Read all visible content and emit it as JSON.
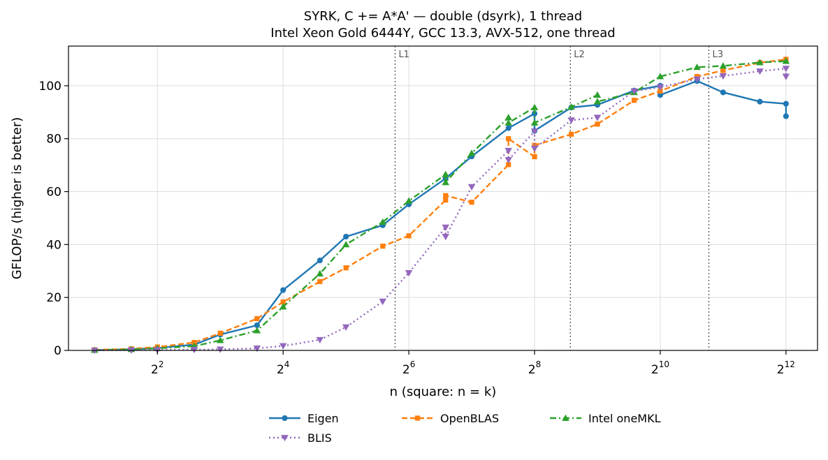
{
  "chart_data": {
    "type": "line",
    "title": "SYRK, C += A*A' — double (dsyrk), 1 thread",
    "subtitle": "Intel Xeon Gold 6444Y, GCC 13.3, AVX-512, one thread",
    "xlabel": "n (square: n = k)",
    "ylabel": "GFLOP/s (higher is better)",
    "xscale": "log2",
    "xlim": [
      1.5,
      5800
    ],
    "ylim": [
      0,
      115
    ],
    "xticks": [
      {
        "value": 4,
        "base": "2",
        "exp": "2"
      },
      {
        "value": 16,
        "base": "2",
        "exp": "4"
      },
      {
        "value": 64,
        "base": "2",
        "exp": "6"
      },
      {
        "value": 256,
        "base": "2",
        "exp": "8"
      },
      {
        "value": 1024,
        "base": "2",
        "exp": "10"
      },
      {
        "value": 4096,
        "base": "2",
        "exp": "12"
      }
    ],
    "yticks": [
      0,
      20,
      40,
      60,
      80,
      100
    ],
    "grid": true,
    "legend_position": "bottom-center",
    "vlines": [
      {
        "label": "L1",
        "x": 55
      },
      {
        "label": "L2",
        "x": 380
      },
      {
        "label": "L3",
        "x": 1750
      }
    ],
    "series": [
      {
        "name": "Eigen",
        "color": "#1f77b4",
        "marker": "circle",
        "dash": "",
        "points": [
          [
            2,
            0.1
          ],
          [
            3,
            0.4
          ],
          [
            4,
            0.9
          ],
          [
            6,
            2.2
          ],
          [
            8,
            6.0
          ],
          [
            12,
            9.5
          ],
          [
            16,
            22.8
          ],
          [
            24,
            34.0
          ],
          [
            32,
            43.0
          ],
          [
            48,
            47.3
          ],
          [
            64,
            55.2
          ],
          [
            96,
            65.0
          ],
          [
            128,
            73.3
          ],
          [
            192,
            84.0
          ],
          [
            256,
            89.5
          ],
          [
            256,
            83.0
          ],
          [
            384,
            91.8
          ],
          [
            512,
            92.8
          ],
          [
            768,
            98.2
          ],
          [
            1024,
            100.0
          ],
          [
            1024,
            96.5
          ],
          [
            1536,
            101.8
          ],
          [
            2048,
            97.5
          ],
          [
            3072,
            94.0
          ],
          [
            4096,
            93.2
          ],
          [
            4096,
            88.5
          ]
        ]
      },
      {
        "name": "OpenBLAS",
        "color": "#ff7f0e",
        "marker": "square",
        "dash": "8,4",
        "points": [
          [
            2,
            0.2
          ],
          [
            3,
            0.6
          ],
          [
            4,
            1.3
          ],
          [
            6,
            3.0
          ],
          [
            8,
            6.5
          ],
          [
            12,
            12.0
          ],
          [
            16,
            18.3
          ],
          [
            24,
            26.0
          ],
          [
            32,
            31.2
          ],
          [
            48,
            39.4
          ],
          [
            64,
            43.3
          ],
          [
            96,
            56.8
          ],
          [
            96,
            58.5
          ],
          [
            128,
            56.0
          ],
          [
            192,
            70.2
          ],
          [
            192,
            80.0
          ],
          [
            256,
            73.2
          ],
          [
            256,
            77.5
          ],
          [
            384,
            81.7
          ],
          [
            512,
            85.5
          ],
          [
            768,
            94.5
          ],
          [
            1024,
            98.0
          ],
          [
            1536,
            103.5
          ],
          [
            2048,
            105.8
          ],
          [
            3072,
            108.7
          ],
          [
            4096,
            110.0
          ]
        ]
      },
      {
        "name": "Intel oneMKL",
        "color": "#2ca02c",
        "marker": "triangle-up",
        "dash": "9,4,2,4",
        "points": [
          [
            2,
            0.1
          ],
          [
            3,
            0.4
          ],
          [
            4,
            0.8
          ],
          [
            6,
            1.6
          ],
          [
            8,
            3.8
          ],
          [
            12,
            7.5
          ],
          [
            16,
            16.5
          ],
          [
            24,
            29.0
          ],
          [
            32,
            40.0
          ],
          [
            48,
            48.5
          ],
          [
            64,
            56.5
          ],
          [
            96,
            66.5
          ],
          [
            96,
            63.5
          ],
          [
            128,
            74.5
          ],
          [
            192,
            88.0
          ],
          [
            192,
            86.0
          ],
          [
            256,
            91.8
          ],
          [
            256,
            86.0
          ],
          [
            384,
            92.0
          ],
          [
            512,
            96.5
          ],
          [
            512,
            94.0
          ],
          [
            768,
            97.5
          ],
          [
            1024,
            103.5
          ],
          [
            1536,
            107.0
          ],
          [
            2048,
            107.5
          ],
          [
            3072,
            108.8
          ],
          [
            4096,
            109.3
          ]
        ]
      },
      {
        "name": "BLIS",
        "color": "#9467bd",
        "marker": "triangle-down",
        "dash": "2,4",
        "points": [
          [
            2,
            0.0
          ],
          [
            3,
            0.1
          ],
          [
            4,
            0.2
          ],
          [
            6,
            0.3
          ],
          [
            8,
            0.4
          ],
          [
            12,
            0.8
          ],
          [
            16,
            1.7
          ],
          [
            24,
            4.0
          ],
          [
            32,
            8.8
          ],
          [
            48,
            18.5
          ],
          [
            64,
            29.3
          ],
          [
            96,
            46.5
          ],
          [
            96,
            43.0
          ],
          [
            128,
            61.8
          ],
          [
            192,
            75.5
          ],
          [
            192,
            72.0
          ],
          [
            256,
            82.8
          ],
          [
            256,
            76.3
          ],
          [
            384,
            87.0
          ],
          [
            512,
            88.0
          ],
          [
            768,
            98.0
          ],
          [
            1024,
            99.5
          ],
          [
            1536,
            102.5
          ],
          [
            2048,
            103.7
          ],
          [
            3072,
            105.5
          ],
          [
            4096,
            106.5
          ],
          [
            4096,
            103.5
          ]
        ]
      }
    ]
  }
}
